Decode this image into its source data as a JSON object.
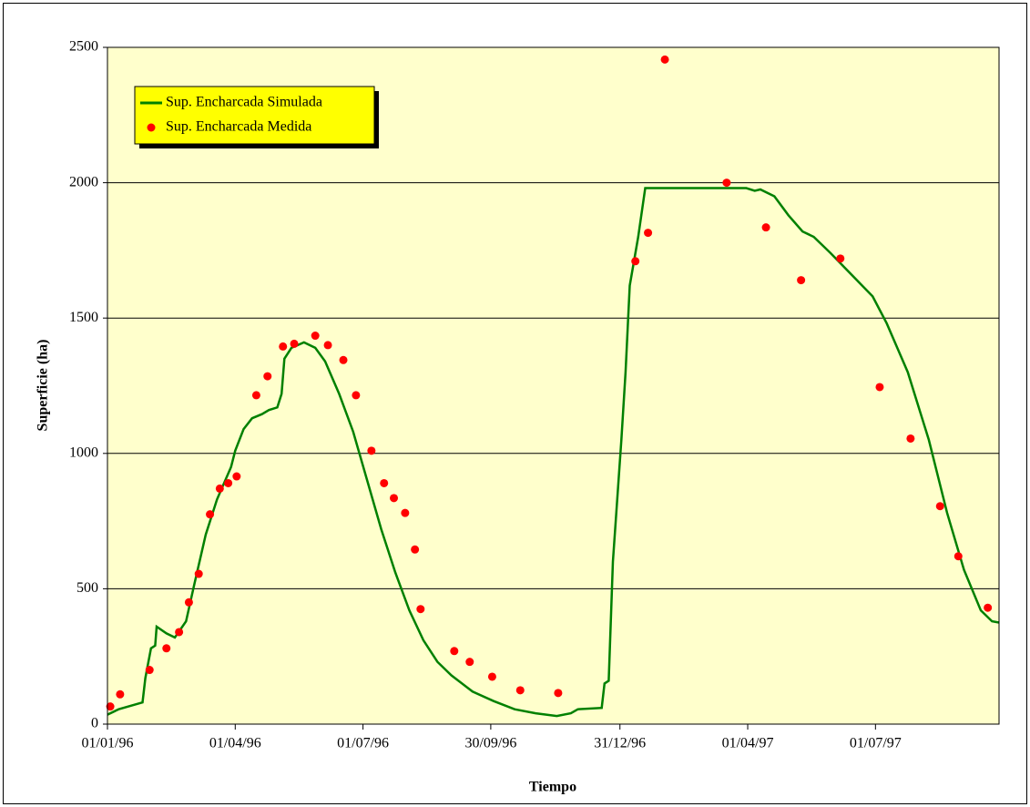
{
  "chart_data": {
    "type": "line",
    "ylabel": "Superficie (ha)",
    "xlabel": "Tiempo",
    "xlim": [
      "01/01/96",
      "27/09/97"
    ],
    "xticks": [
      "01/01/96",
      "01/04/96",
      "01/07/96",
      "30/09/96",
      "31/12/96",
      "01/04/97",
      "01/07/97"
    ],
    "ylim": [
      0,
      2500
    ],
    "yticks": [
      0,
      500,
      1000,
      1500,
      2000,
      2500
    ],
    "grid": true,
    "legend": "upper left",
    "series": [
      {
        "name": "Sup. Encharcada Simulada",
        "type": "line",
        "color": "#008000",
        "x": [
          "01/01/96",
          "09/01/96",
          "26/01/96",
          "28/01/96",
          "01/02/96",
          "04/02/96",
          "05/02/96",
          "12/02/96",
          "18/02/96",
          "26/02/96",
          "03/03/96",
          "11/03/96",
          "19/03/96",
          "29/03/96",
          "01/04/96",
          "07/04/96",
          "13/04/96",
          "20/04/96",
          "25/04/96",
          "01/05/96",
          "04/05/96",
          "06/05/96",
          "11/05/96",
          "20/05/96",
          "28/05/96",
          "04/06/96",
          "14/06/96",
          "24/06/96",
          "04/07/96",
          "14/07/96",
          "24/07/96",
          "03/08/96",
          "13/08/96",
          "23/08/96",
          "02/09/96",
          "17/09/96",
          "02/10/96",
          "17/10/96",
          "01/11/96",
          "16/11/96",
          "26/11/96",
          "01/12/96",
          "18/12/96",
          "20/12/96",
          "23/12/96",
          "26/12/96",
          "01/01/97",
          "04/01/97",
          "07/01/97",
          "13/01/97",
          "18/01/97",
          "31/03/97",
          "06/04/97",
          "10/04/97",
          "20/04/97",
          "30/04/97",
          "10/05/97",
          "18/05/97",
          "30/05/97",
          "14/06/97",
          "29/06/97",
          "09/07/97",
          "24/07/97",
          "08/08/97",
          "21/08/97",
          "02/09/97",
          "14/09/97",
          "22/09/97",
          "27/09/97"
        ],
        "values": [
          35,
          55,
          80,
          170,
          280,
          290,
          360,
          335,
          320,
          380,
          520,
          700,
          830,
          950,
          1010,
          1090,
          1130,
          1145,
          1160,
          1170,
          1220,
          1350,
          1390,
          1410,
          1390,
          1340,
          1220,
          1080,
          900,
          720,
          560,
          420,
          310,
          230,
          180,
          120,
          85,
          55,
          40,
          30,
          40,
          55,
          60,
          150,
          160,
          600,
          1050,
          1300,
          1620,
          1800,
          1980,
          1980,
          1970,
          1975,
          1950,
          1880,
          1820,
          1800,
          1740,
          1660,
          1580,
          1480,
          1300,
          1050,
          780,
          570,
          420,
          380,
          375
        ]
      },
      {
        "name": "Sup. Encharcada Medida",
        "type": "scatter",
        "color": "#ff0000",
        "x": [
          "03/01/96",
          "10/01/96",
          "31/01/96",
          "12/02/96",
          "21/02/96",
          "28/02/96",
          "06/03/96",
          "14/03/96",
          "21/03/96",
          "27/03/96",
          "02/04/96",
          "16/04/96",
          "24/04/96",
          "05/05/96",
          "13/05/96",
          "28/05/96",
          "06/06/96",
          "17/06/96",
          "26/06/96",
          "07/07/96",
          "16/07/96",
          "23/07/96",
          "31/07/96",
          "07/08/96",
          "11/08/96",
          "04/09/96",
          "15/09/96",
          "01/10/96",
          "21/10/96",
          "17/11/96",
          "11/01/97",
          "20/01/97",
          "01/02/97",
          "17/03/97",
          "14/04/97",
          "09/05/97",
          "06/06/97",
          "04/07/97",
          "26/07/97",
          "16/08/97",
          "29/08/97",
          "19/09/97"
        ],
        "values": [
          65,
          110,
          200,
          280,
          340,
          450,
          555,
          775,
          870,
          890,
          915,
          1215,
          1285,
          1395,
          1405,
          1435,
          1400,
          1345,
          1215,
          1010,
          890,
          835,
          780,
          645,
          425,
          270,
          230,
          175,
          125,
          115,
          1710,
          1815,
          2455,
          2000,
          1835,
          1640,
          1720,
          1245,
          1055,
          805,
          620,
          430
        ]
      }
    ]
  }
}
